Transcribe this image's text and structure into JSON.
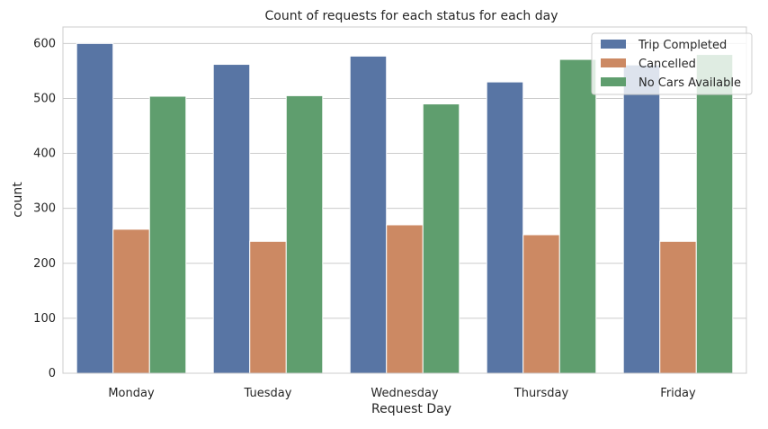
{
  "chart_data": {
    "type": "bar",
    "title": "Count of requests for each status for each day",
    "xlabel": "Request Day",
    "ylabel": "count",
    "categories": [
      "Monday",
      "Tuesday",
      "Wednesday",
      "Thursday",
      "Friday"
    ],
    "series": [
      {
        "name": "Trip Completed",
        "color": "#5875a4",
        "values": [
          600,
          562,
          577,
          530,
          561
        ]
      },
      {
        "name": "Cancelled",
        "color": "#cc8963",
        "values": [
          262,
          240,
          270,
          252,
          240
        ]
      },
      {
        "name": "No Cars Available",
        "color": "#5f9e6e",
        "values": [
          504,
          505,
          490,
          571,
          580
        ]
      }
    ],
    "ylim": [
      0,
      630
    ],
    "yticks": [
      0,
      100,
      200,
      300,
      400,
      500,
      600
    ],
    "grid": "horizontal",
    "legend_position": "top-right"
  }
}
